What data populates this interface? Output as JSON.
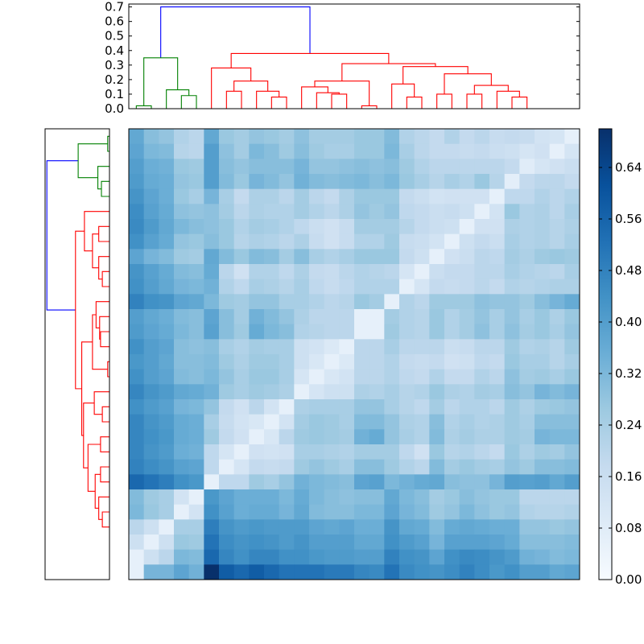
{
  "chart_data": [
    {
      "type": "dendrogram",
      "panel": "top",
      "yaxis": {
        "ticks": [
          0.0,
          0.1,
          0.2,
          0.3,
          0.4,
          0.5,
          0.6,
          0.7
        ],
        "tick_labels": [
          "0.0",
          "0.1",
          "0.2",
          "0.3",
          "0.4",
          "0.5",
          "0.6",
          "0.7"
        ]
      },
      "colors": {
        "cluster_a": "#008000",
        "cluster_b": "#ff0000",
        "root": "#0000ff"
      },
      "root_height": 0.7,
      "cluster_heights": {
        "cluster_a": 0.35,
        "cluster_b": 0.38
      }
    },
    {
      "type": "dendrogram",
      "panel": "left",
      "colors": {
        "cluster_a": "#008000",
        "cluster_b": "#ff0000",
        "root": "#0000ff"
      }
    },
    {
      "type": "heatmap",
      "rows": 30,
      "cols": 30,
      "colormap": "Blues",
      "vmin": 0.0,
      "vmax": 0.7,
      "rows_top_to_bottom": [
        [
          0.37,
          0.3,
          0.28,
          0.22,
          0.2,
          0.37,
          0.27,
          0.25,
          0.28,
          0.27,
          0.25,
          0.29,
          0.25,
          0.25,
          0.25,
          0.27,
          0.27,
          0.31,
          0.22,
          0.2,
          0.18,
          0.22,
          0.18,
          0.2,
          0.17,
          0.18,
          0.17,
          0.13,
          0.12,
          0.06
        ],
        [
          0.38,
          0.32,
          0.31,
          0.21,
          0.2,
          0.4,
          0.29,
          0.25,
          0.32,
          0.3,
          0.26,
          0.3,
          0.26,
          0.24,
          0.24,
          0.27,
          0.27,
          0.32,
          0.24,
          0.2,
          0.18,
          0.18,
          0.17,
          0.18,
          0.16,
          0.15,
          0.12,
          0.14,
          0.06,
          0.12
        ],
        [
          0.4,
          0.35,
          0.34,
          0.27,
          0.26,
          0.4,
          0.3,
          0.28,
          0.3,
          0.3,
          0.3,
          0.33,
          0.28,
          0.28,
          0.29,
          0.3,
          0.29,
          0.3,
          0.26,
          0.22,
          0.2,
          0.2,
          0.2,
          0.2,
          0.2,
          0.18,
          0.08,
          0.12,
          0.14,
          0.16
        ],
        [
          0.41,
          0.36,
          0.35,
          0.28,
          0.27,
          0.4,
          0.31,
          0.27,
          0.33,
          0.31,
          0.28,
          0.34,
          0.31,
          0.3,
          0.31,
          0.32,
          0.3,
          0.32,
          0.27,
          0.24,
          0.21,
          0.24,
          0.22,
          0.27,
          0.21,
          0.07,
          0.18,
          0.2,
          0.2,
          0.18
        ],
        [
          0.43,
          0.38,
          0.35,
          0.27,
          0.24,
          0.33,
          0.24,
          0.18,
          0.23,
          0.23,
          0.2,
          0.25,
          0.2,
          0.18,
          0.23,
          0.27,
          0.27,
          0.27,
          0.18,
          0.16,
          0.13,
          0.14,
          0.14,
          0.14,
          0.06,
          0.19,
          0.19,
          0.22,
          0.2,
          0.22
        ],
        [
          0.45,
          0.39,
          0.36,
          0.29,
          0.28,
          0.29,
          0.25,
          0.2,
          0.23,
          0.22,
          0.22,
          0.25,
          0.22,
          0.2,
          0.23,
          0.28,
          0.26,
          0.28,
          0.19,
          0.18,
          0.16,
          0.17,
          0.15,
          0.06,
          0.13,
          0.27,
          0.22,
          0.23,
          0.2,
          0.24
        ],
        [
          0.46,
          0.41,
          0.37,
          0.32,
          0.3,
          0.29,
          0.27,
          0.22,
          0.25,
          0.24,
          0.22,
          0.19,
          0.16,
          0.14,
          0.17,
          0.25,
          0.25,
          0.25,
          0.21,
          0.18,
          0.16,
          0.15,
          0.06,
          0.14,
          0.14,
          0.23,
          0.22,
          0.23,
          0.21,
          0.23
        ],
        [
          0.44,
          0.39,
          0.36,
          0.28,
          0.27,
          0.3,
          0.27,
          0.21,
          0.23,
          0.22,
          0.2,
          0.23,
          0.17,
          0.14,
          0.17,
          0.22,
          0.22,
          0.26,
          0.17,
          0.16,
          0.13,
          0.06,
          0.15,
          0.18,
          0.16,
          0.24,
          0.22,
          0.23,
          0.21,
          0.24
        ],
        [
          0.38,
          0.33,
          0.31,
          0.26,
          0.25,
          0.37,
          0.31,
          0.27,
          0.31,
          0.3,
          0.25,
          0.3,
          0.24,
          0.22,
          0.24,
          0.27,
          0.27,
          0.27,
          0.18,
          0.15,
          0.06,
          0.14,
          0.16,
          0.2,
          0.19,
          0.25,
          0.23,
          0.26,
          0.27,
          0.26
        ],
        [
          0.43,
          0.39,
          0.36,
          0.31,
          0.3,
          0.36,
          0.2,
          0.14,
          0.22,
          0.22,
          0.19,
          0.23,
          0.18,
          0.17,
          0.2,
          0.22,
          0.21,
          0.2,
          0.12,
          0.06,
          0.16,
          0.18,
          0.18,
          0.2,
          0.2,
          0.24,
          0.22,
          0.21,
          0.2,
          0.24
        ],
        [
          0.44,
          0.4,
          0.37,
          0.33,
          0.32,
          0.34,
          0.22,
          0.19,
          0.24,
          0.23,
          0.21,
          0.24,
          0.19,
          0.17,
          0.19,
          0.22,
          0.22,
          0.22,
          0.06,
          0.12,
          0.18,
          0.17,
          0.18,
          0.2,
          0.18,
          0.22,
          0.21,
          0.22,
          0.23,
          0.23
        ],
        [
          0.48,
          0.44,
          0.43,
          0.38,
          0.37,
          0.32,
          0.26,
          0.25,
          0.28,
          0.28,
          0.24,
          0.24,
          0.22,
          0.2,
          0.21,
          0.27,
          0.25,
          0.06,
          0.22,
          0.2,
          0.26,
          0.26,
          0.26,
          0.29,
          0.28,
          0.28,
          0.26,
          0.3,
          0.33,
          0.36
        ],
        [
          0.4,
          0.37,
          0.35,
          0.31,
          0.3,
          0.38,
          0.3,
          0.25,
          0.34,
          0.31,
          0.28,
          0.23,
          0.2,
          0.2,
          0.2,
          0.06,
          0.06,
          0.25,
          0.22,
          0.21,
          0.27,
          0.22,
          0.25,
          0.28,
          0.24,
          0.28,
          0.24,
          0.27,
          0.23,
          0.27
        ],
        [
          0.41,
          0.38,
          0.36,
          0.32,
          0.3,
          0.39,
          0.3,
          0.26,
          0.36,
          0.32,
          0.3,
          0.22,
          0.21,
          0.2,
          0.2,
          0.06,
          0.06,
          0.26,
          0.22,
          0.21,
          0.27,
          0.22,
          0.25,
          0.29,
          0.24,
          0.29,
          0.25,
          0.27,
          0.24,
          0.28
        ],
        [
          0.44,
          0.4,
          0.38,
          0.3,
          0.29,
          0.3,
          0.24,
          0.22,
          0.25,
          0.24,
          0.24,
          0.15,
          0.13,
          0.1,
          0.06,
          0.2,
          0.2,
          0.24,
          0.2,
          0.2,
          0.2,
          0.16,
          0.17,
          0.2,
          0.2,
          0.26,
          0.22,
          0.23,
          0.21,
          0.26
        ],
        [
          0.42,
          0.4,
          0.37,
          0.3,
          0.3,
          0.31,
          0.26,
          0.23,
          0.26,
          0.26,
          0.24,
          0.15,
          0.11,
          0.06,
          0.1,
          0.2,
          0.2,
          0.22,
          0.18,
          0.17,
          0.18,
          0.14,
          0.15,
          0.19,
          0.18,
          0.27,
          0.24,
          0.24,
          0.21,
          0.24
        ],
        [
          0.44,
          0.4,
          0.38,
          0.31,
          0.3,
          0.32,
          0.28,
          0.24,
          0.27,
          0.27,
          0.24,
          0.12,
          0.06,
          0.11,
          0.13,
          0.2,
          0.2,
          0.22,
          0.19,
          0.18,
          0.22,
          0.18,
          0.18,
          0.22,
          0.2,
          0.29,
          0.25,
          0.26,
          0.24,
          0.27
        ],
        [
          0.47,
          0.43,
          0.41,
          0.37,
          0.36,
          0.34,
          0.26,
          0.24,
          0.26,
          0.25,
          0.23,
          0.06,
          0.12,
          0.15,
          0.15,
          0.23,
          0.22,
          0.24,
          0.21,
          0.22,
          0.27,
          0.23,
          0.22,
          0.25,
          0.24,
          0.3,
          0.28,
          0.33,
          0.31,
          0.33
        ],
        [
          0.44,
          0.41,
          0.39,
          0.33,
          0.32,
          0.28,
          0.18,
          0.14,
          0.2,
          0.13,
          0.06,
          0.23,
          0.24,
          0.24,
          0.24,
          0.28,
          0.28,
          0.24,
          0.21,
          0.19,
          0.25,
          0.2,
          0.22,
          0.22,
          0.2,
          0.26,
          0.23,
          0.26,
          0.27,
          0.28
        ],
        [
          0.47,
          0.43,
          0.41,
          0.36,
          0.35,
          0.24,
          0.17,
          0.13,
          0.11,
          0.06,
          0.13,
          0.25,
          0.27,
          0.26,
          0.24,
          0.31,
          0.31,
          0.28,
          0.23,
          0.22,
          0.3,
          0.22,
          0.24,
          0.22,
          0.23,
          0.26,
          0.24,
          0.3,
          0.3,
          0.3
        ],
        [
          0.47,
          0.44,
          0.42,
          0.36,
          0.35,
          0.26,
          0.18,
          0.14,
          0.06,
          0.11,
          0.2,
          0.26,
          0.27,
          0.26,
          0.25,
          0.34,
          0.36,
          0.28,
          0.24,
          0.22,
          0.31,
          0.23,
          0.25,
          0.23,
          0.23,
          0.26,
          0.25,
          0.33,
          0.32,
          0.32
        ],
        [
          0.47,
          0.43,
          0.41,
          0.35,
          0.34,
          0.19,
          0.12,
          0.06,
          0.14,
          0.13,
          0.14,
          0.24,
          0.24,
          0.23,
          0.22,
          0.25,
          0.25,
          0.25,
          0.19,
          0.14,
          0.27,
          0.21,
          0.22,
          0.2,
          0.18,
          0.27,
          0.23,
          0.26,
          0.25,
          0.28
        ],
        [
          0.48,
          0.45,
          0.43,
          0.39,
          0.38,
          0.19,
          0.06,
          0.12,
          0.18,
          0.17,
          0.18,
          0.26,
          0.28,
          0.26,
          0.24,
          0.3,
          0.3,
          0.26,
          0.22,
          0.2,
          0.31,
          0.25,
          0.27,
          0.25,
          0.24,
          0.28,
          0.26,
          0.3,
          0.3,
          0.31
        ],
        [
          0.55,
          0.52,
          0.49,
          0.44,
          0.42,
          0.06,
          0.19,
          0.19,
          0.26,
          0.24,
          0.28,
          0.34,
          0.32,
          0.31,
          0.3,
          0.38,
          0.39,
          0.32,
          0.34,
          0.36,
          0.37,
          0.3,
          0.29,
          0.29,
          0.33,
          0.4,
          0.39,
          0.4,
          0.37,
          0.4
        ],
        [
          0.31,
          0.26,
          0.24,
          0.13,
          0.06,
          0.42,
          0.38,
          0.35,
          0.35,
          0.35,
          0.32,
          0.36,
          0.32,
          0.3,
          0.29,
          0.3,
          0.3,
          0.37,
          0.32,
          0.3,
          0.25,
          0.27,
          0.3,
          0.28,
          0.27,
          0.27,
          0.2,
          0.2,
          0.2,
          0.2
        ],
        [
          0.32,
          0.27,
          0.24,
          0.06,
          0.13,
          0.44,
          0.39,
          0.35,
          0.36,
          0.36,
          0.33,
          0.37,
          0.31,
          0.3,
          0.3,
          0.32,
          0.32,
          0.38,
          0.33,
          0.31,
          0.26,
          0.28,
          0.32,
          0.29,
          0.27,
          0.28,
          0.22,
          0.21,
          0.21,
          0.22
        ],
        [
          0.2,
          0.15,
          0.06,
          0.24,
          0.24,
          0.49,
          0.43,
          0.41,
          0.42,
          0.41,
          0.41,
          0.41,
          0.38,
          0.37,
          0.38,
          0.35,
          0.35,
          0.43,
          0.37,
          0.36,
          0.31,
          0.36,
          0.37,
          0.36,
          0.35,
          0.35,
          0.28,
          0.28,
          0.27,
          0.28
        ],
        [
          0.15,
          0.06,
          0.15,
          0.27,
          0.26,
          0.52,
          0.45,
          0.43,
          0.44,
          0.43,
          0.41,
          0.43,
          0.4,
          0.4,
          0.4,
          0.37,
          0.37,
          0.44,
          0.41,
          0.39,
          0.33,
          0.39,
          0.39,
          0.39,
          0.38,
          0.36,
          0.3,
          0.3,
          0.3,
          0.31
        ],
        [
          0.06,
          0.15,
          0.2,
          0.32,
          0.31,
          0.55,
          0.47,
          0.44,
          0.47,
          0.47,
          0.44,
          0.44,
          0.42,
          0.41,
          0.41,
          0.4,
          0.4,
          0.48,
          0.44,
          0.43,
          0.38,
          0.44,
          0.46,
          0.45,
          0.43,
          0.41,
          0.34,
          0.33,
          0.31,
          0.32
        ],
        [
          0.06,
          0.33,
          0.33,
          0.38,
          0.34,
          0.7,
          0.58,
          0.55,
          0.58,
          0.55,
          0.52,
          0.52,
          0.52,
          0.5,
          0.5,
          0.47,
          0.46,
          0.52,
          0.46,
          0.44,
          0.43,
          0.45,
          0.48,
          0.45,
          0.42,
          0.44,
          0.4,
          0.4,
          0.37,
          0.38
        ]
      ],
      "colorbar": {
        "ticks": [
          0.0,
          0.08,
          0.16,
          0.24,
          0.32,
          0.4,
          0.48,
          0.56,
          0.64
        ],
        "tick_labels": [
          "0.00",
          "0.08",
          "0.16",
          "0.24",
          "0.32",
          "0.40",
          "0.48",
          "0.56",
          "0.64"
        ]
      }
    }
  ]
}
